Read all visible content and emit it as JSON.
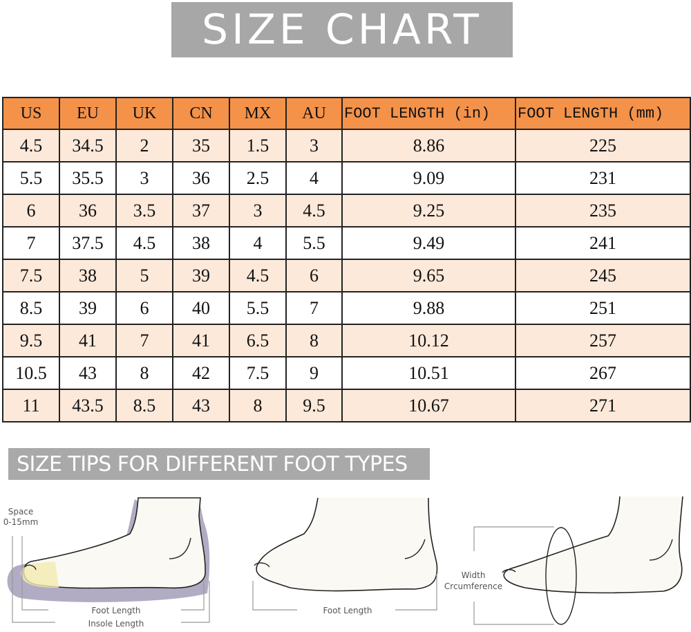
{
  "title": "SIZE CHART",
  "table": {
    "headers": [
      "US",
      "EU",
      "UK",
      "CN",
      "MX",
      "AU",
      "FOOT LENGTH (in)",
      "FOOT LENGTH (mm)"
    ],
    "rows": [
      [
        "4.5",
        "34.5",
        "2",
        "35",
        "1.5",
        "3",
        "8.86",
        "225"
      ],
      [
        "5.5",
        "35.5",
        "3",
        "36",
        "2.5",
        "4",
        "9.09",
        "231"
      ],
      [
        "6",
        "36",
        "3.5",
        "37",
        "3",
        "4.5",
        "9.25",
        "235"
      ],
      [
        "7",
        "37.5",
        "4.5",
        "38",
        "4",
        "5.5",
        "9.49",
        "241"
      ],
      [
        "7.5",
        "38",
        "5",
        "39",
        "4.5",
        "6",
        "9.65",
        "245"
      ],
      [
        "8.5",
        "39",
        "6",
        "40",
        "5.5",
        "7",
        "9.88",
        "251"
      ],
      [
        "9.5",
        "41",
        "7",
        "41",
        "6.5",
        "8",
        "10.12",
        "257"
      ],
      [
        "10.5",
        "43",
        "8",
        "42",
        "7.5",
        "9",
        "10.51",
        "267"
      ],
      [
        "11",
        "43.5",
        "8.5",
        "43",
        "8",
        "9.5",
        "10.67",
        "271"
      ]
    ],
    "header_color": "#f4924a",
    "stripe_color": "#fde9da"
  },
  "tips": {
    "title": "SIZE TIPS FOR DIFFERENT FOOT TYPES",
    "diagram1": {
      "space": "Space",
      "space_range": "0-15mm",
      "foot_length": "Foot Length",
      "insole_length": "Insole Length"
    },
    "diagram2": {
      "foot_length": "Foot Length"
    },
    "diagram3": {
      "width": "Width",
      "circumference": "Crcumference"
    }
  }
}
